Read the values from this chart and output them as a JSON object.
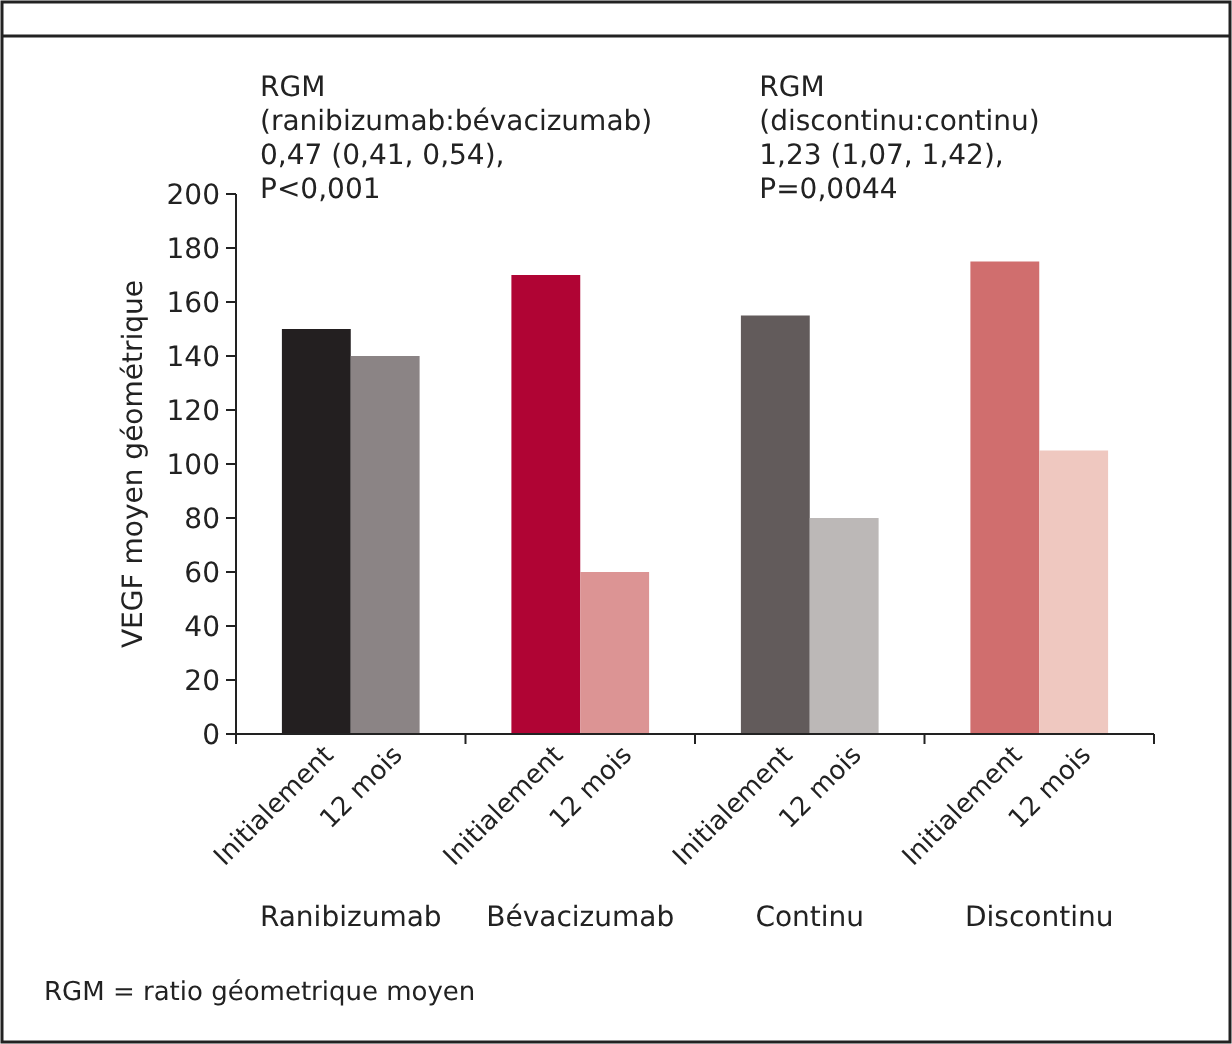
{
  "chart_data": {
    "type": "bar",
    "ylabel": "VEGF moyen géométrique",
    "categories": [
      "Ranibizumab",
      "Bévacizumab",
      "Continu",
      "Discontinu"
    ],
    "series": [
      {
        "name": "Initialement",
        "colors": [
          "#231f20",
          "#b00434",
          "#625b5b",
          "#d06e6e"
        ],
        "values": [
          150,
          170,
          155,
          175
        ]
      },
      {
        "name": "12 mois",
        "colors": [
          "#8b8485",
          "#dc9494",
          "#bcb8b7",
          "#efc8c0"
        ],
        "values": [
          140,
          60,
          80,
          105
        ]
      }
    ],
    "ylim": [
      0,
      200
    ],
    "yticks": [
      0,
      20,
      40,
      60,
      80,
      100,
      120,
      140,
      160,
      180,
      200
    ],
    "grid": false,
    "legend": "bottom",
    "annotations": [
      "RGM\n(ranibizumab:bévacizumab)\n0,47 (0,41, 0,54),\nP<0,001",
      "RGM\n(discontinu:continu)\n1,23 (1,07, 1,42),\nP=0,0044",
      "RGM = ratio géometrique moyen"
    ]
  }
}
